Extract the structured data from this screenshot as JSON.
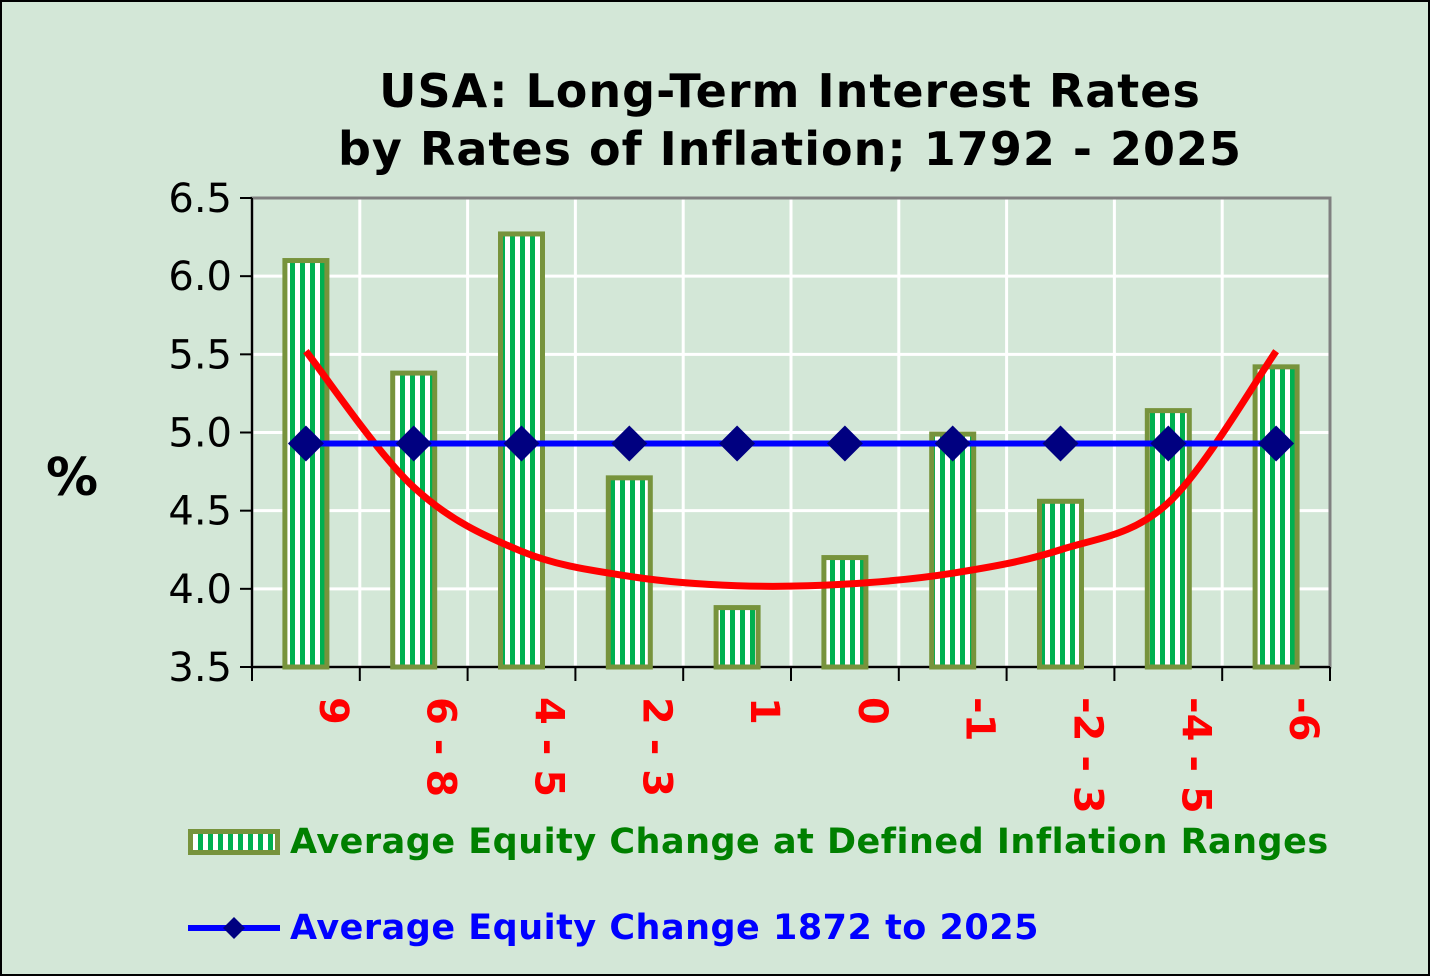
{
  "chart_data": {
    "type": "bar",
    "title": "USA: Long-Term Interest Rates",
    "subtitle": "by Rates of Inflation;  1792 - 2025",
    "ylabel": "%",
    "xlabel": "",
    "ylim": [
      3.5,
      6.5
    ],
    "yticks": [
      "3.5",
      "4.0",
      "4.5",
      "5.0",
      "5.5",
      "6.0",
      "6.5"
    ],
    "grid": true,
    "categories": [
      "9",
      "6 - 8",
      "4 - 5",
      "2 - 3",
      "1",
      "0",
      "-1",
      "-2 - 3",
      "-4 - 5",
      "-6"
    ],
    "series": [
      {
        "name": "Average Equity Change at Defined Inflation Ranges",
        "kind": "bar",
        "values": [
          6.1,
          5.38,
          6.27,
          4.71,
          3.88,
          4.2,
          4.99,
          4.56,
          5.14,
          5.42
        ],
        "fill_color": "#00b050",
        "border_color": "#77933c"
      },
      {
        "name": "Average Equity Change 1872 to 2025",
        "kind": "line",
        "values": [
          4.93,
          4.93,
          4.93,
          4.93,
          4.93,
          4.93,
          4.93,
          4.93,
          4.93,
          4.93
        ],
        "line_color": "#0000ff",
        "marker_color": "#000080",
        "marker": "diamond"
      },
      {
        "name": "trend curve",
        "kind": "curve",
        "values": [
          5.52,
          4.65,
          4.24,
          4.08,
          4.02,
          4.03,
          4.1,
          4.25,
          4.55,
          5.52
        ],
        "line_color": "#ff0000"
      }
    ]
  },
  "legend": {
    "bar_label": "Average Equity Change at Defined Inflation Ranges",
    "line_label": "Average Equity Change 1872 to 2025"
  }
}
